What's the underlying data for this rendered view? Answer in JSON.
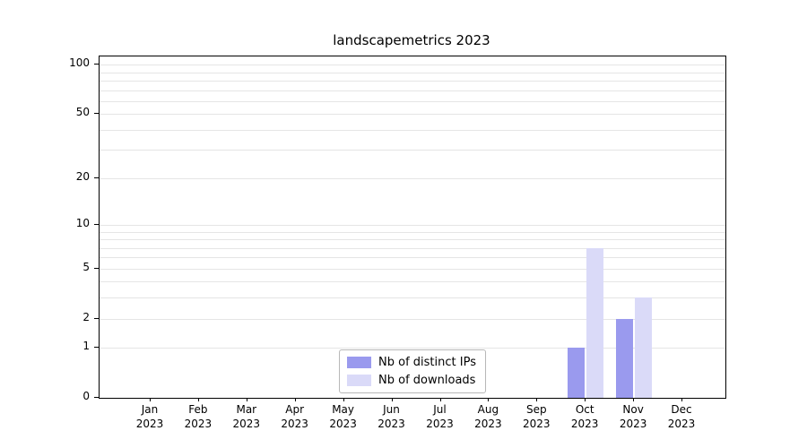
{
  "title": "landscapemetrics 2023",
  "chart_data": {
    "type": "bar",
    "title": "landscapemetrics 2023",
    "categories": [
      "Jan",
      "Feb",
      "Mar",
      "Apr",
      "May",
      "Jun",
      "Jul",
      "Aug",
      "Sep",
      "Oct",
      "Nov",
      "Dec"
    ],
    "category_year_labels": [
      "2023",
      "2023",
      "2023",
      "2023",
      "2023",
      "2023",
      "2023",
      "2023",
      "2023",
      "2023",
      "2023",
      "2023"
    ],
    "series": [
      {
        "name": "Nb of distinct IPs",
        "color": "#9a9aee",
        "values": [
          0,
          0,
          0,
          0,
          0,
          0,
          0,
          0,
          0,
          1,
          2,
          0
        ]
      },
      {
        "name": "Nb of downloads",
        "color": "#dadaf8",
        "values": [
          0,
          0,
          0,
          0,
          0,
          0,
          0,
          0,
          0,
          7,
          3,
          0
        ]
      }
    ],
    "y_ticks": [
      0,
      1,
      2,
      5,
      10,
      20,
      50,
      100
    ],
    "gridline_values": [
      1,
      2,
      3,
      4,
      5,
      6,
      7,
      8,
      9,
      10,
      20,
      30,
      40,
      50,
      60,
      70,
      80,
      90,
      100
    ],
    "y_scale": "log1p",
    "ylim": [
      0,
      112
    ],
    "xlabel": "",
    "ylabel": "",
    "grid": true,
    "legend_position": "lower center"
  },
  "legend": {
    "entries": [
      {
        "label": "Nb of distinct IPs"
      },
      {
        "label": "Nb of downloads"
      }
    ]
  }
}
